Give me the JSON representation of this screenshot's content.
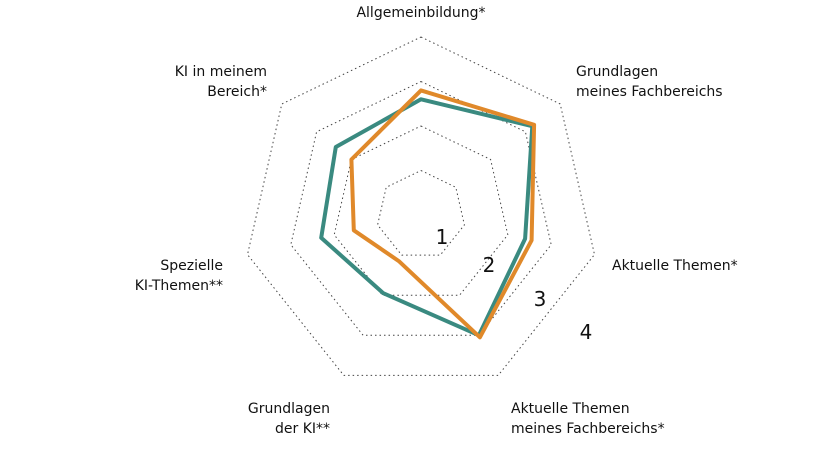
{
  "chart_data": {
    "type": "radar",
    "title": "",
    "scale": {
      "min": 0,
      "max": 4,
      "rings": [
        1,
        2,
        3,
        4
      ]
    },
    "ring_labels": [
      "1",
      "2",
      "3",
      "4"
    ],
    "axes": [
      {
        "lines": [
          "Allgemeinbildung*"
        ]
      },
      {
        "lines": [
          "Grundlagen",
          "meines Fachbereichs"
        ]
      },
      {
        "lines": [
          "Aktuelle Themen*"
        ]
      },
      {
        "lines": [
          "Aktuelle Themen",
          "meines Fachbereichs*"
        ]
      },
      {
        "lines": [
          "Grundlagen",
          "der KI**"
        ]
      },
      {
        "lines": [
          "Spezielle",
          "KI-Themen**"
        ]
      },
      {
        "lines": [
          "KI in meinem",
          "Bereich*"
        ]
      }
    ],
    "series": [
      {
        "color": "#3a8a80",
        "values": [
          2.6,
          3.2,
          2.4,
          3.0,
          1.95,
          2.3,
          2.45
        ]
      },
      {
        "color": "#e0892a",
        "values": [
          2.8,
          3.25,
          2.55,
          3.05,
          1.15,
          1.55,
          2.0
        ]
      }
    ],
    "grid": true,
    "legend": "none"
  }
}
